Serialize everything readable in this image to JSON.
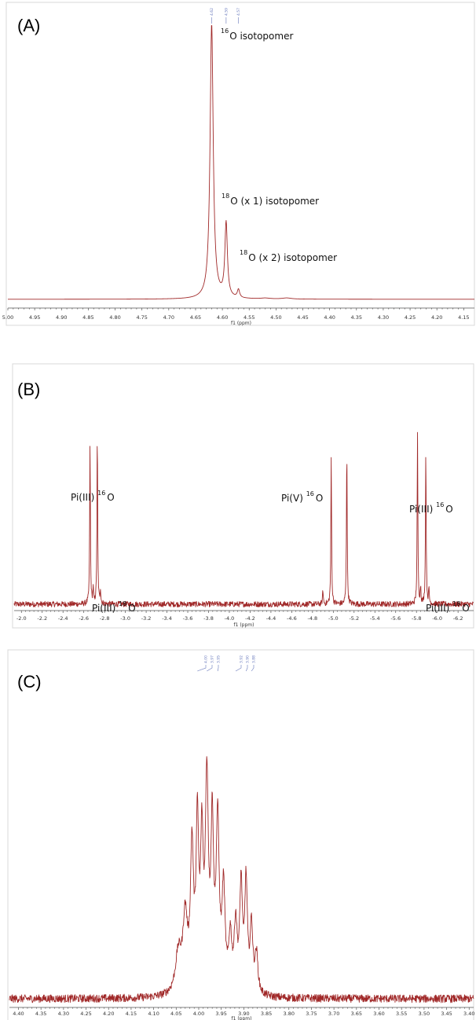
{
  "chart_data": [
    {
      "type": "line",
      "panel_label": "(A)",
      "xlabel": "f1 (ppm)",
      "xlim": [
        5.0,
        4.13
      ],
      "x_reversed": true,
      "x_ticks": [
        "5.00",
        "4.95",
        "4.90",
        "4.85",
        "4.80",
        "4.75",
        "4.70",
        "4.65",
        "4.60",
        "4.55",
        "4.50",
        "4.45",
        "4.40",
        "4.35",
        "4.30",
        "4.25",
        "4.20",
        "4.15"
      ],
      "baseline": 0.12,
      "grid": false,
      "peaks": [
        {
          "x": 4.62,
          "height": 1.0,
          "width": 0.0035
        },
        {
          "x": 4.593,
          "height": 0.27,
          "width": 0.0028
        },
        {
          "x": 4.57,
          "height": 0.03,
          "width": 0.0025
        },
        {
          "x": 4.52,
          "height": 0.003,
          "width": 0.01
        },
        {
          "x": 4.48,
          "height": 0.004,
          "width": 0.01
        }
      ],
      "noise": 0.0,
      "peak_labels": [
        "4.62",
        "4.59",
        "4.57"
      ],
      "annotations": [
        {
          "sup": "16",
          "text": "O isotopomer"
        },
        {
          "sup": "18",
          "text": "O (x 1) isotopomer"
        },
        {
          "sup": "18",
          "text": "O (x 2) isotopomer"
        }
      ]
    },
    {
      "type": "line",
      "panel_label": "(B)",
      "xlabel": "f1 (ppm)",
      "xlim": [
        -1.93,
        -6.35
      ],
      "x_reversed": true,
      "x_ticks": [
        "-2.0",
        "-2.2",
        "-2.4",
        "-2.6",
        "-2.8",
        "-3.0",
        "-3.2",
        "-3.4",
        "-3.6",
        "-3.8",
        "-4.0",
        "-4.2",
        "-4.4",
        "-4.6",
        "-4.8",
        "-5.0",
        "-5.2",
        "-5.4",
        "-5.6",
        "-5.8",
        "-6.0",
        "-6.2"
      ],
      "baseline": 0.1,
      "grid": false,
      "peaks": [
        {
          "x": -2.66,
          "height": 0.68,
          "width": 0.004
        },
        {
          "x": -2.73,
          "height": 0.72,
          "width": 0.004
        },
        {
          "x": -2.69,
          "height": 0.06,
          "width": 0.004
        },
        {
          "x": -2.76,
          "height": 0.06,
          "width": 0.004
        },
        {
          "x": -4.9,
          "height": 0.06,
          "width": 0.004
        },
        {
          "x": -4.98,
          "height": 0.62,
          "width": 0.004
        },
        {
          "x": -5.13,
          "height": 0.67,
          "width": 0.004
        },
        {
          "x": -5.81,
          "height": 0.72,
          "width": 0.004
        },
        {
          "x": -5.89,
          "height": 0.65,
          "width": 0.004
        },
        {
          "x": -5.84,
          "height": 0.07,
          "width": 0.004
        },
        {
          "x": -5.92,
          "height": 0.06,
          "width": 0.004
        }
      ],
      "noise": 0.012,
      "annotations": [
        {
          "text": "Pi(III)",
          "sup": "16",
          "tail": "O"
        },
        {
          "text": "Pi(III)",
          "sup": "18",
          "tail": "O"
        },
        {
          "text": "Pi(V)",
          "sup": "16",
          "tail": "O"
        },
        {
          "text": "Pi(III)",
          "sup": "16",
          "tail": "O"
        },
        {
          "text": "Pi(III)",
          "sup": "18",
          "tail": "O"
        }
      ]
    },
    {
      "type": "line",
      "panel_label": "(C)",
      "xlabel": "f1 (ppm)",
      "xlim": [
        4.42,
        3.39
      ],
      "x_reversed": true,
      "x_ticks": [
        "4.40",
        "4.35",
        "4.30",
        "4.25",
        "4.20",
        "4.15",
        "4.10",
        "4.05",
        "4.00",
        "3.95",
        "3.90",
        "3.85",
        "3.80",
        "3.75",
        "3.70",
        "3.65",
        "3.60",
        "3.55",
        "3.50",
        "3.45",
        "3.40"
      ],
      "baseline": 0.1,
      "grid": false,
      "peaks": [
        {
          "x": 4.045,
          "height": 0.12,
          "width": 0.008
        },
        {
          "x": 4.03,
          "height": 0.22,
          "width": 0.006
        },
        {
          "x": 4.015,
          "height": 0.42,
          "width": 0.004
        },
        {
          "x": 4.003,
          "height": 0.48,
          "width": 0.0035
        },
        {
          "x": 3.993,
          "height": 0.42,
          "width": 0.0035
        },
        {
          "x": 3.982,
          "height": 0.62,
          "width": 0.004
        },
        {
          "x": 3.97,
          "height": 0.48,
          "width": 0.0035
        },
        {
          "x": 3.958,
          "height": 0.5,
          "width": 0.004
        },
        {
          "x": 3.945,
          "height": 0.3,
          "width": 0.004
        },
        {
          "x": 3.93,
          "height": 0.16,
          "width": 0.004
        },
        {
          "x": 3.918,
          "height": 0.2,
          "width": 0.004
        },
        {
          "x": 3.906,
          "height": 0.32,
          "width": 0.0035
        },
        {
          "x": 3.895,
          "height": 0.33,
          "width": 0.0035
        },
        {
          "x": 3.883,
          "height": 0.2,
          "width": 0.0035
        },
        {
          "x": 3.872,
          "height": 0.12,
          "width": 0.004
        }
      ],
      "noise": 0.012,
      "peak_labels": [
        "4.00",
        "3.97",
        "3.95",
        "3.92",
        "3.90",
        "3.88"
      ]
    }
  ]
}
